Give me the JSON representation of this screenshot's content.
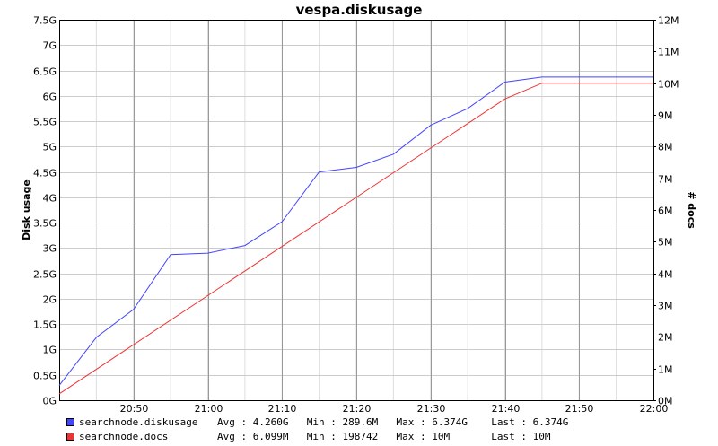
{
  "chart_data": {
    "type": "line",
    "title": "vespa.diskusage",
    "ylabel_left": "Disk usage",
    "ylabel_right": "# docs",
    "x_ticks": [
      "20:50",
      "21:00",
      "21:10",
      "21:20",
      "21:30",
      "21:40",
      "21:50",
      "22:00"
    ],
    "x_range": [
      "20:40",
      "22:00"
    ],
    "y_left_ticks": [
      "0G",
      "0.5G",
      "1G",
      "1.5G",
      "2G",
      "2.5G",
      "3G",
      "3.5G",
      "4G",
      "4.5G",
      "5G",
      "5.5G",
      "6G",
      "6.5G",
      "7G",
      "7.5G"
    ],
    "y_left_range": [
      0,
      7.5
    ],
    "y_left_unit": "G",
    "y_right_ticks": [
      "0M",
      "1M",
      "2M",
      "3M",
      "4M",
      "5M",
      "6M",
      "7M",
      "8M",
      "9M",
      "10M",
      "11M",
      "12M"
    ],
    "y_right_range": [
      0,
      12
    ],
    "y_right_unit": "M",
    "grid": true,
    "series": [
      {
        "name": "searchnode.diskusage",
        "axis": "left",
        "color": "#4444ff",
        "x": [
          "20:40",
          "20:45",
          "20:50",
          "20:55",
          "21:00",
          "21:05",
          "21:10",
          "21:15",
          "21:20",
          "21:25",
          "21:30",
          "21:35",
          "21:40",
          "21:45",
          "21:50",
          "22:00"
        ],
        "values": [
          0.29,
          1.24,
          1.79,
          2.87,
          2.9,
          3.05,
          3.52,
          4.5,
          4.59,
          4.85,
          5.42,
          5.75,
          6.27,
          6.37,
          6.37,
          6.37
        ],
        "stats": {
          "avg": "4.260G",
          "min": "289.6M",
          "max": "6.374G",
          "last": "6.374G"
        }
      },
      {
        "name": "searchnode.docs",
        "axis": "right",
        "color": "#ee3333",
        "x": [
          "20:40",
          "21:40",
          "21:45",
          "21:50",
          "22:00"
        ],
        "values": [
          0.2,
          9.5,
          10,
          10,
          10
        ],
        "stats": {
          "avg": "6.099M",
          "min": "198742",
          "max": "10M",
          "last": "10M"
        }
      }
    ]
  },
  "legend_labels": {
    "avg": "Avg :",
    "min": "Min :",
    "max": "Max :",
    "last": "Last :"
  }
}
